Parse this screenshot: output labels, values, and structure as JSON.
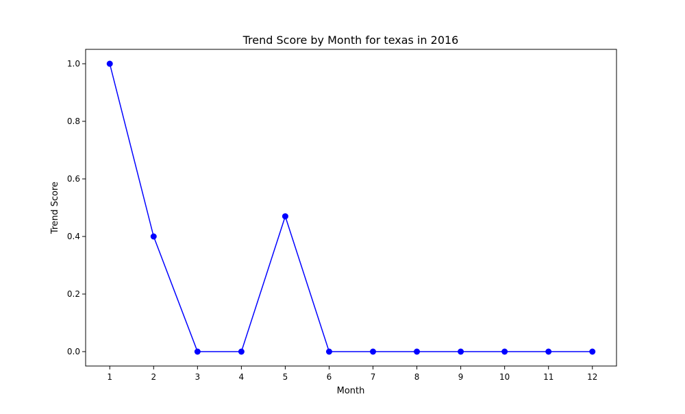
{
  "chart_data": {
    "type": "line",
    "title": "Trend Score by Month for texas in 2016",
    "xlabel": "Month",
    "ylabel": "Trend Score",
    "x": [
      1,
      2,
      3,
      4,
      5,
      6,
      7,
      8,
      9,
      10,
      11,
      12
    ],
    "x_tick_labels": [
      "1",
      "2",
      "3",
      "4",
      "5",
      "6",
      "7",
      "8",
      "9",
      "10",
      "11",
      "12"
    ],
    "y_ticks": [
      0.0,
      0.2,
      0.4,
      0.6,
      0.8,
      1.0
    ],
    "y_tick_labels": [
      "0.0",
      "0.2",
      "0.4",
      "0.6",
      "0.8",
      "1.0"
    ],
    "series": [
      {
        "values": [
          1.0,
          0.4,
          0.0,
          0.0,
          0.47,
          0.0,
          0.0,
          0.0,
          0.0,
          0.0,
          0.0,
          0.0
        ],
        "color": "#0000ff",
        "marker": "circle"
      }
    ],
    "xlim": [
      0.45,
      12.55
    ],
    "ylim": [
      -0.05,
      1.05
    ],
    "grid": false,
    "legend": "none"
  }
}
